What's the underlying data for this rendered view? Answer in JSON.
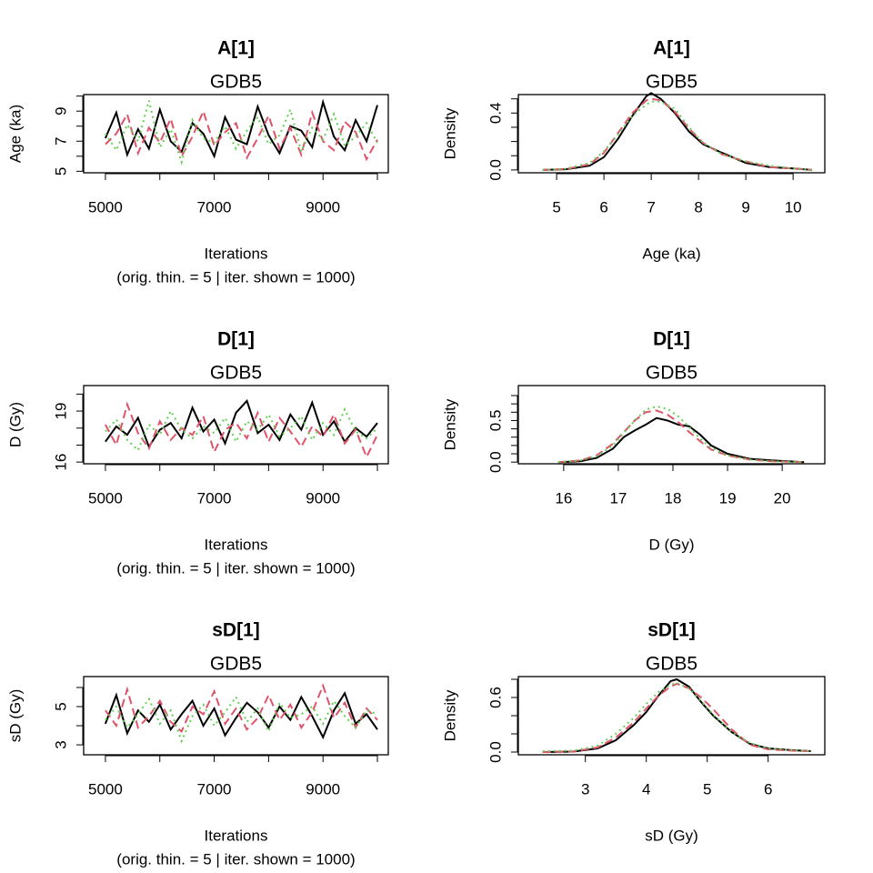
{
  "chart_data": [
    {
      "type": "line",
      "title": "A[1]",
      "subtitle": "GDB5",
      "xlabel": "Iterations",
      "xlabel_note": "(orig. thin. = 5 | iter. shown = 1000)",
      "ylabel": "Age (ka)",
      "xlim": [
        4600,
        10200
      ],
      "ylim": [
        4.9,
        10.1
      ],
      "xticks": [
        5000,
        7000,
        9000
      ],
      "xminor": [
        6000,
        8000,
        10000
      ],
      "yticks": [
        5,
        7,
        9
      ],
      "yminor": [
        6,
        8,
        10
      ],
      "x": [
        5000,
        5200,
        5400,
        5600,
        5800,
        6000,
        6200,
        6400,
        6600,
        6800,
        7000,
        7200,
        7400,
        7600,
        7800,
        8000,
        8200,
        8400,
        8600,
        8800,
        9000,
        9200,
        9400,
        9600,
        9800,
        10000
      ],
      "series": [
        {
          "color": "#000000",
          "dash": "solid",
          "values": [
            7.2,
            8.9,
            6.1,
            7.8,
            6.5,
            9.1,
            7.0,
            6.3,
            8.2,
            7.5,
            6.0,
            8.6,
            7.1,
            6.8,
            9.3,
            7.4,
            6.2,
            8.0,
            7.7,
            6.6,
            9.6,
            7.3,
            6.4,
            8.4,
            7.0,
            9.4
          ]
        },
        {
          "color": "#DF536B",
          "dash": "dashed",
          "values": [
            6.8,
            7.5,
            8.8,
            6.2,
            7.9,
            6.9,
            8.5,
            6.0,
            7.3,
            9.0,
            6.7,
            7.6,
            8.2,
            5.9,
            7.2,
            8.7,
            6.5,
            7.9,
            6.1,
            8.9,
            7.0,
            6.4,
            8.3,
            7.6,
            5.8,
            7.1
          ]
        },
        {
          "color": "#61D04F",
          "dash": "dotted",
          "values": [
            7.5,
            6.4,
            8.1,
            7.0,
            9.7,
            6.6,
            7.8,
            5.6,
            8.4,
            7.2,
            6.9,
            8.0,
            6.5,
            7.7,
            8.6,
            6.8,
            7.4,
            9.1,
            6.3,
            7.9,
            7.1,
            8.8,
            6.7,
            7.3,
            8.2,
            6.9
          ]
        }
      ]
    },
    {
      "type": "line",
      "title": "A[1]",
      "subtitle": "GDB5",
      "xlabel": "Age (ka)",
      "ylabel": "Density",
      "xlim": [
        4.19,
        10.67
      ],
      "ylim": [
        -0.02,
        0.53
      ],
      "xticks": [
        5,
        6,
        7,
        8,
        9,
        10
      ],
      "xminor": [],
      "yticks": [
        {
          "value": 0,
          "label": "0.0"
        },
        0.4
      ],
      "yminor": [
        0.1,
        0.2,
        0.3,
        0.5
      ],
      "x": [
        4.7,
        5.2,
        5.7,
        6.0,
        6.3,
        6.6,
        6.9,
        7.0,
        7.2,
        7.5,
        7.8,
        8.1,
        8.5,
        9.0,
        9.5,
        10.0,
        10.4
      ],
      "series": [
        {
          "color": "#000000",
          "dash": "solid",
          "values": [
            0.0,
            0.005,
            0.03,
            0.09,
            0.22,
            0.38,
            0.52,
            0.54,
            0.5,
            0.4,
            0.27,
            0.18,
            0.12,
            0.05,
            0.02,
            0.01,
            0.0
          ]
        },
        {
          "color": "#DF536B",
          "dash": "dashed",
          "values": [
            0.0,
            0.006,
            0.04,
            0.12,
            0.26,
            0.4,
            0.49,
            0.5,
            0.49,
            0.41,
            0.29,
            0.19,
            0.11,
            0.06,
            0.02,
            0.01,
            0.0
          ]
        },
        {
          "color": "#61D04F",
          "dash": "dotted",
          "values": [
            0.0,
            0.008,
            0.05,
            0.13,
            0.25,
            0.38,
            0.46,
            0.48,
            0.48,
            0.43,
            0.3,
            0.19,
            0.11,
            0.06,
            0.03,
            0.01,
            0.0
          ]
        }
      ]
    },
    {
      "type": "line",
      "title": "D[1]",
      "subtitle": "GDB5",
      "xlabel": "Iterations",
      "xlabel_note": "(orig. thin. = 5 | iter. shown = 1000)",
      "ylabel": "D (Gy)",
      "xlim": [
        4600,
        10200
      ],
      "ylim": [
        15.9,
        20.5
      ],
      "xticks": [
        5000,
        7000,
        9000
      ],
      "xminor": [
        6000,
        8000,
        10000
      ],
      "yticks": [
        16,
        19
      ],
      "yminor": [
        17,
        18,
        20
      ],
      "x": [
        5000,
        5200,
        5400,
        5600,
        5800,
        6000,
        6200,
        6400,
        6600,
        6800,
        7000,
        7200,
        7400,
        7600,
        7800,
        8000,
        8200,
        8400,
        8600,
        8800,
        9000,
        9200,
        9400,
        9600,
        9800,
        10000
      ],
      "series": [
        {
          "color": "#000000",
          "dash": "solid",
          "values": [
            17.2,
            18.1,
            17.6,
            18.6,
            16.9,
            17.9,
            18.3,
            17.4,
            19.2,
            17.8,
            18.5,
            17.1,
            18.9,
            19.6,
            17.7,
            18.2,
            17.3,
            18.8,
            17.9,
            19.5,
            17.6,
            18.4,
            17.2,
            18.0,
            17.5,
            18.3
          ]
        },
        {
          "color": "#DF536B",
          "dash": "dashed",
          "values": [
            18.2,
            17.0,
            19.4,
            17.7,
            16.8,
            18.4,
            17.3,
            18.0,
            17.6,
            18.7,
            16.6,
            17.9,
            18.3,
            17.4,
            18.9,
            17.2,
            18.6,
            17.8,
            16.9,
            18.1,
            17.5,
            18.8,
            17.1,
            17.9,
            16.3,
            17.6
          ]
        },
        {
          "color": "#61D04F",
          "dash": "dotted",
          "values": [
            17.8,
            18.5,
            17.3,
            16.7,
            18.2,
            17.6,
            19.0,
            17.9,
            17.4,
            18.1,
            17.7,
            18.6,
            17.2,
            18.4,
            17.9,
            18.8,
            17.5,
            18.0,
            18.7,
            17.3,
            18.3,
            17.6,
            19.1,
            17.8,
            17.4,
            18.0
          ]
        }
      ]
    },
    {
      "type": "line",
      "title": "D[1]",
      "subtitle": "GDB5",
      "xlabel": "D (Gy)",
      "ylabel": "Density",
      "xlim": [
        15.17,
        20.78
      ],
      "ylim": [
        -0.02,
        0.92
      ],
      "xticks": [
        16,
        17,
        18,
        19,
        20
      ],
      "xminor": [],
      "yticks": [
        {
          "value": 0,
          "label": "0.0"
        },
        0.5
      ],
      "yminor": [
        0.1,
        0.2,
        0.3,
        0.4,
        0.6,
        0.7,
        0.8
      ],
      "x": [
        15.9,
        16.3,
        16.6,
        16.9,
        17.1,
        17.3,
        17.5,
        17.7,
        17.9,
        18.1,
        18.3,
        18.5,
        18.7,
        19.0,
        19.4,
        19.8,
        20.4
      ],
      "series": [
        {
          "color": "#000000",
          "dash": "solid",
          "values": [
            0.0,
            0.01,
            0.05,
            0.16,
            0.3,
            0.38,
            0.45,
            0.53,
            0.5,
            0.45,
            0.43,
            0.33,
            0.2,
            0.1,
            0.04,
            0.02,
            0.0
          ]
        },
        {
          "color": "#DF536B",
          "dash": "dashed",
          "values": [
            0.0,
            0.02,
            0.08,
            0.22,
            0.36,
            0.5,
            0.6,
            0.62,
            0.57,
            0.48,
            0.36,
            0.25,
            0.15,
            0.08,
            0.03,
            0.01,
            0.0
          ]
        },
        {
          "color": "#61D04F",
          "dash": "dotted",
          "values": [
            0.0,
            0.02,
            0.07,
            0.2,
            0.35,
            0.5,
            0.63,
            0.67,
            0.64,
            0.55,
            0.42,
            0.28,
            0.17,
            0.08,
            0.03,
            0.01,
            0.0
          ]
        }
      ]
    },
    {
      "type": "line",
      "title": "sD[1]",
      "subtitle": "GDB5",
      "xlabel": "Iterations",
      "xlabel_note": "(orig. thin. = 5 | iter. shown = 1000)",
      "ylabel": "sD (Gy)",
      "xlim": [
        4600,
        10200
      ],
      "ylim": [
        2.48,
        6.57
      ],
      "xticks": [
        5000,
        7000,
        9000
      ],
      "xminor": [
        6000,
        8000,
        10000
      ],
      "yticks": [
        3,
        5
      ],
      "yminor": [
        4,
        6
      ],
      "x": [
        5000,
        5200,
        5400,
        5600,
        5800,
        6000,
        6200,
        6400,
        6600,
        6800,
        7000,
        7200,
        7400,
        7600,
        7800,
        8000,
        8200,
        8400,
        8600,
        8800,
        9000,
        9200,
        9400,
        9600,
        9800,
        10000
      ],
      "series": [
        {
          "color": "#000000",
          "dash": "solid",
          "values": [
            4.1,
            5.6,
            3.6,
            4.8,
            4.2,
            5.1,
            3.8,
            4.6,
            5.3,
            4.0,
            4.9,
            3.5,
            4.4,
            5.2,
            4.7,
            3.9,
            5.0,
            4.3,
            5.5,
            4.5,
            3.4,
            4.8,
            5.7,
            4.1,
            4.6,
            3.8
          ]
        },
        {
          "color": "#DF536B",
          "dash": "dashed",
          "values": [
            4.8,
            4.0,
            5.9,
            3.9,
            4.5,
            5.3,
            4.2,
            3.7,
            5.0,
            4.6,
            5.8,
            4.1,
            4.9,
            3.8,
            4.4,
            5.6,
            4.3,
            5.1,
            3.9,
            4.7,
            6.1,
            4.4,
            5.2,
            3.9,
            4.9,
            4.3
          ]
        },
        {
          "color": "#61D04F",
          "dash": "dotted",
          "values": [
            4.3,
            5.0,
            3.9,
            4.6,
            5.4,
            4.1,
            4.8,
            3.2,
            4.5,
            5.1,
            4.0,
            4.7,
            5.5,
            4.2,
            4.9,
            3.7,
            5.2,
            4.4,
            4.6,
            5.0,
            4.1,
            5.3,
            4.5,
            3.9,
            4.8,
            4.6
          ]
        }
      ]
    },
    {
      "type": "line",
      "title": "sD[1]",
      "subtitle": "GDB5",
      "xlabel": "sD (Gy)",
      "ylabel": "Density",
      "xlim": [
        1.9,
        6.93
      ],
      "ylim": [
        -0.03,
        0.83
      ],
      "xticks": [
        3,
        4,
        5,
        6
      ],
      "xminor": [],
      "yticks": [
        {
          "value": 0,
          "label": "0.0"
        },
        0.6
      ],
      "yminor": [
        0.2,
        0.4,
        0.8
      ],
      "x": [
        2.3,
        2.8,
        3.2,
        3.5,
        3.8,
        4.0,
        4.2,
        4.4,
        4.5,
        4.7,
        4.9,
        5.1,
        5.4,
        5.7,
        6.0,
        6.4,
        6.7
      ],
      "series": [
        {
          "color": "#000000",
          "dash": "solid",
          "values": [
            0.0,
            0.005,
            0.04,
            0.13,
            0.3,
            0.44,
            0.62,
            0.78,
            0.8,
            0.72,
            0.55,
            0.4,
            0.22,
            0.09,
            0.04,
            0.02,
            0.01
          ]
        },
        {
          "color": "#DF536B",
          "dash": "dashed",
          "values": [
            0.0,
            0.006,
            0.05,
            0.16,
            0.33,
            0.48,
            0.62,
            0.72,
            0.75,
            0.7,
            0.6,
            0.47,
            0.25,
            0.08,
            0.03,
            0.015,
            0.01
          ]
        },
        {
          "color": "#61D04F",
          "dash": "dotted",
          "values": [
            0.01,
            0.015,
            0.07,
            0.2,
            0.38,
            0.53,
            0.66,
            0.74,
            0.76,
            0.7,
            0.56,
            0.41,
            0.22,
            0.1,
            0.04,
            0.02,
            0.01
          ]
        }
      ]
    }
  ]
}
